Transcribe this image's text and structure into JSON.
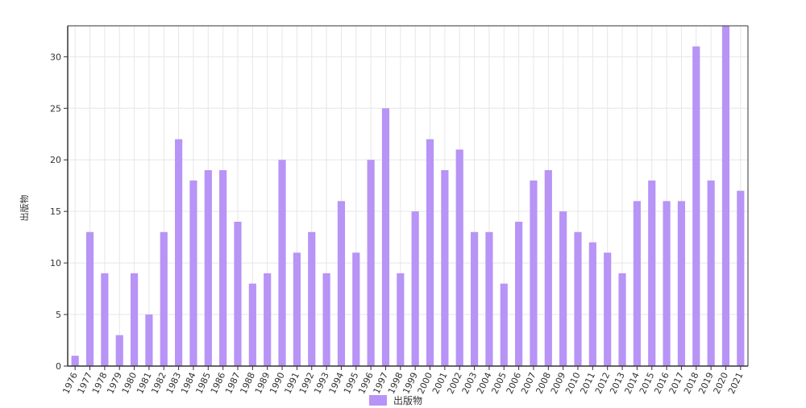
{
  "chart_data": {
    "type": "bar",
    "ylabel": "出版物",
    "ylim": [
      0,
      33
    ],
    "yticks": [
      0,
      5,
      10,
      15,
      20,
      25,
      30
    ],
    "grid": true,
    "legend_position": "bottom-center",
    "categories": [
      "1976",
      "1977",
      "1978",
      "1979",
      "1980",
      "1981",
      "1982",
      "1983",
      "1984",
      "1985",
      "1986",
      "1987",
      "1988",
      "1989",
      "1990",
      "1991",
      "1992",
      "1993",
      "1994",
      "1995",
      "1996",
      "1997",
      "1998",
      "1999",
      "2000",
      "2001",
      "2002",
      "2003",
      "2004",
      "2005",
      "2006",
      "2007",
      "2008",
      "2009",
      "2010",
      "2011",
      "2012",
      "2013",
      "2014",
      "2015",
      "2016",
      "2017",
      "2018",
      "2019",
      "2020",
      "2021"
    ],
    "series": [
      {
        "name": "出版物",
        "color": "#b794f6",
        "values": [
          1,
          13,
          9,
          3,
          9,
          5,
          13,
          22,
          18,
          19,
          19,
          14,
          8,
          9,
          20,
          11,
          13,
          9,
          16,
          11,
          20,
          25,
          9,
          15,
          22,
          19,
          21,
          13,
          13,
          8,
          14,
          18,
          19,
          15,
          13,
          12,
          11,
          9,
          16,
          18,
          16,
          16,
          31,
          18,
          33,
          17
        ]
      }
    ]
  }
}
